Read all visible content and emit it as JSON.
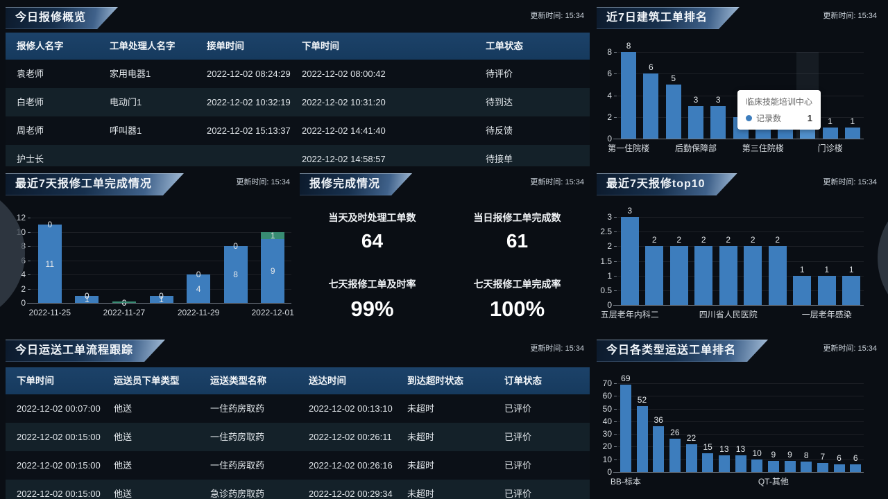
{
  "update_time_label": "更新时间: 15:34",
  "panels": {
    "today_repair_overview": {
      "title": "今日报修概览",
      "table": {
        "columns": [
          "报修人名字",
          "工单处理人名字",
          "接单时间",
          "下单时间",
          "工单状态"
        ],
        "rows": [
          [
            "袁老师",
            "家用电器1",
            "2022-12-02 08:24:29",
            "2022-12-02 08:00:42",
            "待评价"
          ],
          [
            "白老师",
            "电动门1",
            "2022-12-02 10:32:19",
            "2022-12-02 10:31:20",
            "待到达"
          ],
          [
            "周老师",
            "呼叫器1",
            "2022-12-02 15:13:37",
            "2022-12-02 14:41:40",
            "待反馈"
          ],
          [
            "护士长",
            "",
            "",
            "2022-12-02 14:58:57",
            "待接单"
          ]
        ]
      }
    },
    "building_rank_7d": {
      "title": "近7日建筑工单排名"
    },
    "repair_done_7d": {
      "title": "最近7天报修工单完成情况"
    },
    "repair_summary": {
      "title": "报修完成情况",
      "stats": [
        {
          "label": "当天及时处理工单数",
          "value": "64"
        },
        {
          "label": "当日报修工单完成数",
          "value": "61"
        },
        {
          "label": "七天报修工单及时率",
          "value": "99%"
        },
        {
          "label": "七天报修工单完成率",
          "value": "100%"
        }
      ]
    },
    "repair_top10_7d": {
      "title": "最近7天报修top10"
    },
    "today_transport_tracking": {
      "title": "今日运送工单流程跟踪",
      "table": {
        "columns": [
          "下单时间",
          "运送员下单类型",
          "运送类型名称",
          "送达时间",
          "到达超时状态",
          "订单状态"
        ],
        "rows": [
          [
            "2022-12-02 00:07:00",
            "他送",
            "一住药房取药",
            "2022-12-02 00:13:10",
            "未超时",
            "已评价"
          ],
          [
            "2022-12-02 00:15:00",
            "他送",
            "一住药房取药",
            "2022-12-02 00:26:11",
            "未超时",
            "已评价"
          ],
          [
            "2022-12-02 00:15:00",
            "他送",
            "一住药房取药",
            "2022-12-02 00:26:16",
            "未超时",
            "已评价"
          ],
          [
            "2022-12-02 00:15:00",
            "他送",
            "急诊药房取药",
            "2022-12-02 00:29:34",
            "未超时",
            "已评价"
          ]
        ]
      }
    },
    "today_transport_rank": {
      "title": "今日各类型运送工单排名"
    }
  },
  "chart_data": [
    {
      "id": "building_rank_7d",
      "type": "bar",
      "title": "近7日建筑工单排名",
      "categories": [
        "第一住院楼",
        "",
        "",
        "后勤保障部",
        "",
        "",
        "第三住院楼",
        "",
        "临床技能培训中心",
        "门诊楼",
        ""
      ],
      "values": [
        8,
        6,
        5,
        3,
        3,
        2,
        2,
        2,
        1,
        1,
        1
      ],
      "xlabel_indices": [
        0,
        3,
        6,
        9
      ],
      "ylim": [
        0,
        8
      ],
      "yticks": [
        0,
        2,
        4,
        6,
        8
      ],
      "bar_color": "#3d7dbd",
      "highlight_index": 8,
      "highlight_color": "#5191cd",
      "value_label_position": "top",
      "grid": true,
      "legend": "none",
      "tooltip": {
        "title": "临床技能培训中心",
        "series": "记录数",
        "value": "1"
      }
    },
    {
      "id": "repair_done_7d",
      "type": "bar",
      "stacked": true,
      "title": "最近7天报修工单完成情况",
      "categories": [
        "2022-11-25",
        "2022-11-26",
        "2022-11-27",
        "2022-11-28",
        "2022-11-29",
        "2022-11-30",
        "2022-12-01"
      ],
      "series": [
        {
          "color": "#3d7dbd",
          "values": [
            11,
            1,
            0,
            1,
            4,
            8,
            9
          ]
        },
        {
          "color": "#388c73",
          "values": [
            0,
            0,
            0,
            0,
            0,
            0,
            1
          ]
        }
      ],
      "xlabel_indices": [
        0,
        2,
        4,
        6
      ],
      "ylim": [
        0,
        12
      ],
      "yticks": [
        0,
        2,
        4,
        6,
        8,
        10,
        12
      ],
      "value_label_position": "inside",
      "grid": true,
      "legend": "none"
    },
    {
      "id": "repair_top10_7d",
      "type": "bar",
      "title": "最近7天报修top10",
      "categories": [
        "五层老年内科二",
        "",
        "",
        "",
        "四川省人民医院",
        "",
        "",
        "",
        "一层老年感染",
        ""
      ],
      "values": [
        3,
        2,
        2,
        2,
        2,
        2,
        2,
        1,
        1,
        1
      ],
      "xlabel_indices": [
        0,
        4,
        8
      ],
      "ylim": [
        0,
        3
      ],
      "yticks": [
        0,
        0.5,
        1,
        1.5,
        2,
        2.5,
        3
      ],
      "bar_color": "#3d7dbd",
      "value_label_position": "top",
      "grid": true,
      "legend": "none"
    },
    {
      "id": "today_transport_rank",
      "type": "bar",
      "title": "今日各类型运送工单排名",
      "categories": [
        "BB-标本",
        "",
        "",
        "",
        "",
        "",
        "",
        "",
        "",
        "QT-其他",
        "",
        "",
        "",
        "",
        ""
      ],
      "values": [
        69,
        52,
        36,
        26,
        22,
        15,
        13,
        13,
        10,
        9,
        9,
        8,
        7,
        6,
        6
      ],
      "xlabel_indices": [
        0,
        9
      ],
      "ylim": [
        0,
        70
      ],
      "yticks": [
        0,
        10,
        20,
        30,
        40,
        50,
        60,
        70
      ],
      "bar_color": "#3d7dbd",
      "value_label_position": "top",
      "grid": true,
      "legend": "none"
    }
  ]
}
